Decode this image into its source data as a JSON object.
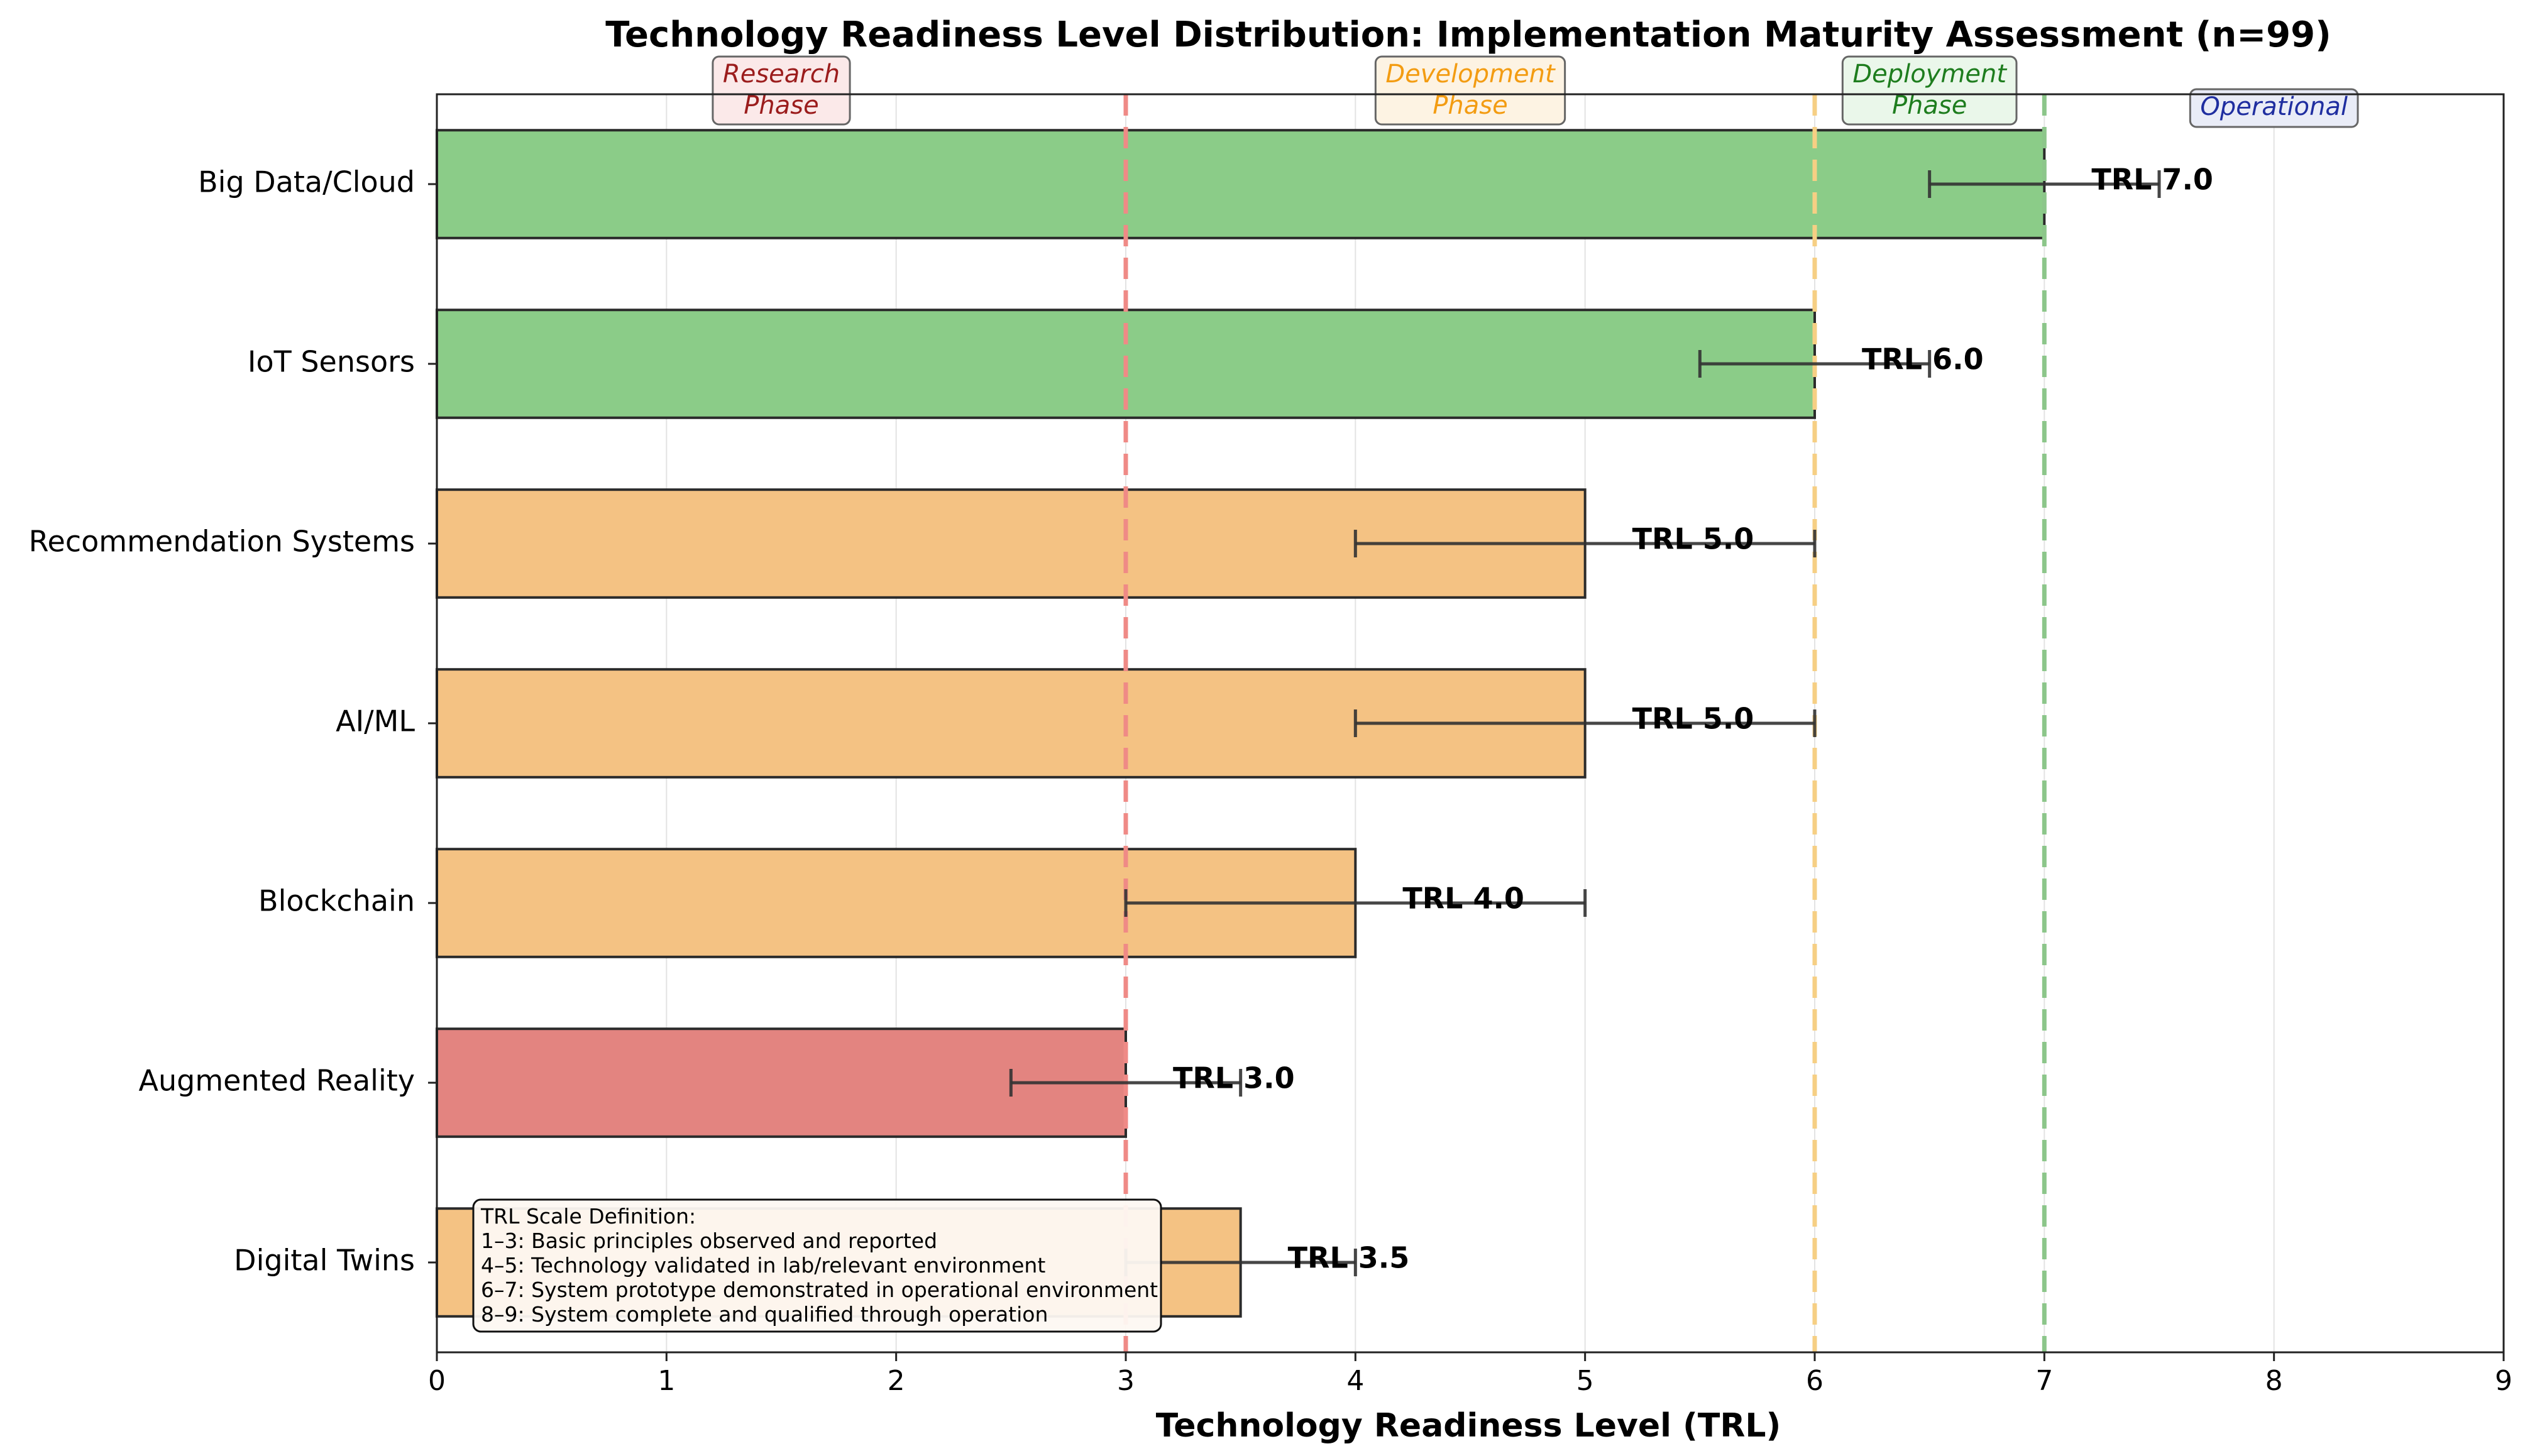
{
  "chart_data": {
    "type": "bar",
    "orientation": "horizontal",
    "title": "Technology Readiness Level Distribution: Implementation Maturity Assessment (n=99)",
    "xlabel": "Technology Readiness Level (TRL)",
    "ylabel": "",
    "xlim": [
      0,
      9
    ],
    "xticks": [
      0,
      1,
      2,
      3,
      4,
      5,
      6,
      7,
      8,
      9
    ],
    "grid": true,
    "categories": [
      "Big Data/Cloud",
      "IoT Sensors",
      "Recommendation Systems",
      "AI/ML",
      "Blockchain",
      "Augmented Reality",
      "Digital Twins"
    ],
    "values": [
      7.0,
      6.0,
      5.0,
      5.0,
      4.0,
      3.0,
      3.5
    ],
    "error_low": [
      6.5,
      5.5,
      4.0,
      4.0,
      3.0,
      2.5,
      3.0
    ],
    "error_high": [
      7.5,
      6.5,
      6.0,
      6.0,
      5.0,
      3.5,
      4.0
    ],
    "value_labels": [
      "TRL 7.0",
      "TRL 6.0",
      "TRL 5.0",
      "TRL 5.0",
      "TRL 4.0",
      "TRL 3.0",
      "TRL 3.5"
    ],
    "bar_colors": [
      "#8bcc88",
      "#8bcc88",
      "#f4c283",
      "#f4c283",
      "#f4c283",
      "#e38480",
      "#f4c283"
    ],
    "thresholds": [
      {
        "value": 3,
        "color": "#ef8a86"
      },
      {
        "value": 6,
        "color": "#f6cf84"
      },
      {
        "value": 7,
        "color": "#8cc68a"
      }
    ],
    "phases": [
      {
        "label_lines": [
          "Research",
          "Phase"
        ],
        "center": 1.5,
        "text_color": "#9b1c1c",
        "fill": "#fbe9e9"
      },
      {
        "label_lines": [
          "Development",
          "Phase"
        ],
        "center": 4.5,
        "text_color": "#f39c12",
        "fill": "#fdf3e3"
      },
      {
        "label_lines": [
          "Deployment",
          "Phase"
        ],
        "center": 6.5,
        "text_color": "#1e7d1e",
        "fill": "#eaf7ea"
      },
      {
        "label_lines": [
          "Operational"
        ],
        "center": 8.0,
        "text_color": "#1f2ea0",
        "fill": "#e9ecf7"
      }
    ],
    "legend": {
      "placement": "bottom-left",
      "lines": [
        "TRL Scale Definition:",
        "1–3: Basic principles observed and reported",
        "4–5: Technology validated in lab/relevant environment",
        "6–7: System prototype demonstrated in operational environment",
        "8–9: System complete and qualified through operation"
      ]
    }
  }
}
